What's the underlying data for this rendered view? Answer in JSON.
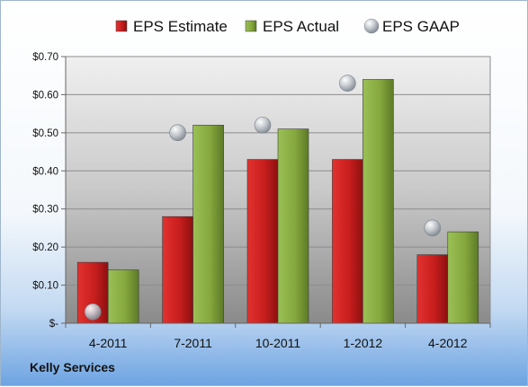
{
  "company": "Kelly Services",
  "chart_data": {
    "type": "bar",
    "categories": [
      "4-2011",
      "7-2011",
      "10-2011",
      "1-2012",
      "4-2012"
    ],
    "series": [
      {
        "name": "EPS Estimate",
        "kind": "bar",
        "color": "#c81e1e",
        "values": [
          0.16,
          0.28,
          0.43,
          0.43,
          0.18
        ]
      },
      {
        "name": "EPS Actual",
        "kind": "bar",
        "color": "#86a83e",
        "values": [
          0.14,
          0.52,
          0.51,
          0.64,
          0.24
        ]
      },
      {
        "name": "EPS GAAP",
        "kind": "marker",
        "color": "#b8bec6",
        "values": [
          0.03,
          0.5,
          0.52,
          0.63,
          0.25
        ]
      }
    ],
    "y_ticks": [
      "$-",
      "$0.10",
      "$0.20",
      "$0.30",
      "$0.40",
      "$0.50",
      "$0.60",
      "$0.70"
    ],
    "ylim": [
      0,
      0.7
    ],
    "grid": true,
    "legend_position": "top"
  }
}
